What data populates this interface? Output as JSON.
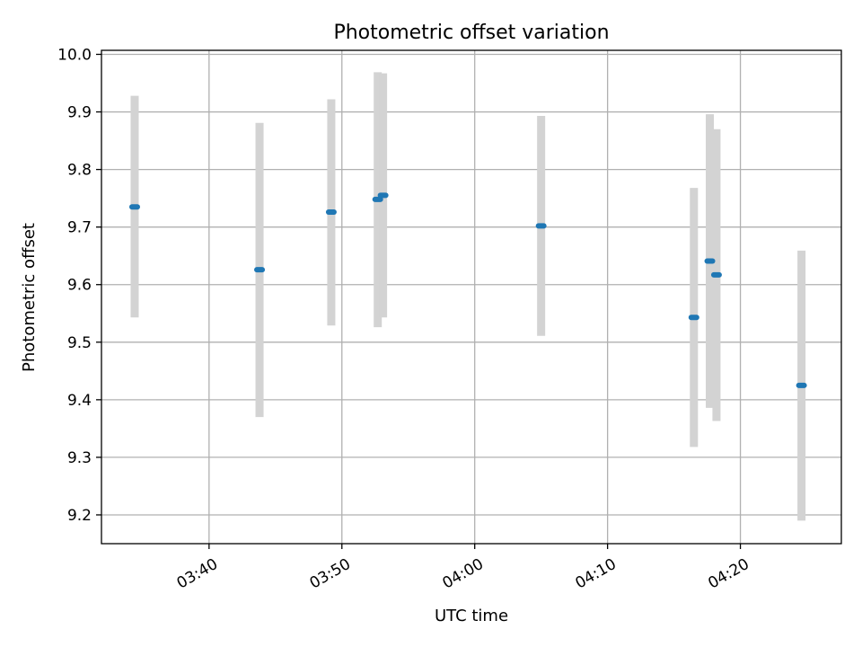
{
  "chart_data": {
    "type": "scatter",
    "title": "Photometric offset variation",
    "xlabel": "UTC time",
    "ylabel": "Photometric offset",
    "x_ticks": [
      "03:40",
      "03:50",
      "04:00",
      "04:10",
      "04:20"
    ],
    "y_ticks": [
      "9.2",
      "9.3",
      "9.4",
      "9.5",
      "9.6",
      "9.7",
      "9.8",
      "9.9",
      "10.0"
    ],
    "xlim": [
      "03:31.9",
      "04:27.6"
    ],
    "ylim": [
      9.15,
      10.007
    ],
    "grid": true,
    "point_color": "#1f77b4",
    "errorbar_color": "#d3d3d3",
    "series": [
      {
        "points": [
          {
            "time": "03:34.4",
            "offset": 9.735,
            "err_low": 9.543,
            "err_high": 9.928
          },
          {
            "time": "03:43.8",
            "offset": 9.626,
            "err_low": 9.37,
            "err_high": 9.881
          },
          {
            "time": "03:49.2",
            "offset": 9.726,
            "err_low": 9.529,
            "err_high": 9.922
          },
          {
            "time": "03:52.7",
            "offset": 9.748,
            "err_low": 9.526,
            "err_high": 9.969
          },
          {
            "time": "03:53.1",
            "offset": 9.755,
            "err_low": 9.543,
            "err_high": 9.967
          },
          {
            "time": "04:05.0",
            "offset": 9.702,
            "err_low": 9.511,
            "err_high": 9.893
          },
          {
            "time": "04:16.5",
            "offset": 9.543,
            "err_low": 9.318,
            "err_high": 9.768
          },
          {
            "time": "04:17.7",
            "offset": 9.641,
            "err_low": 9.386,
            "err_high": 9.896
          },
          {
            "time": "04:18.2",
            "offset": 9.617,
            "err_low": 9.363,
            "err_high": 9.87
          },
          {
            "time": "04:24.6",
            "offset": 9.425,
            "err_low": 9.19,
            "err_high": 9.659
          }
        ]
      }
    ]
  }
}
